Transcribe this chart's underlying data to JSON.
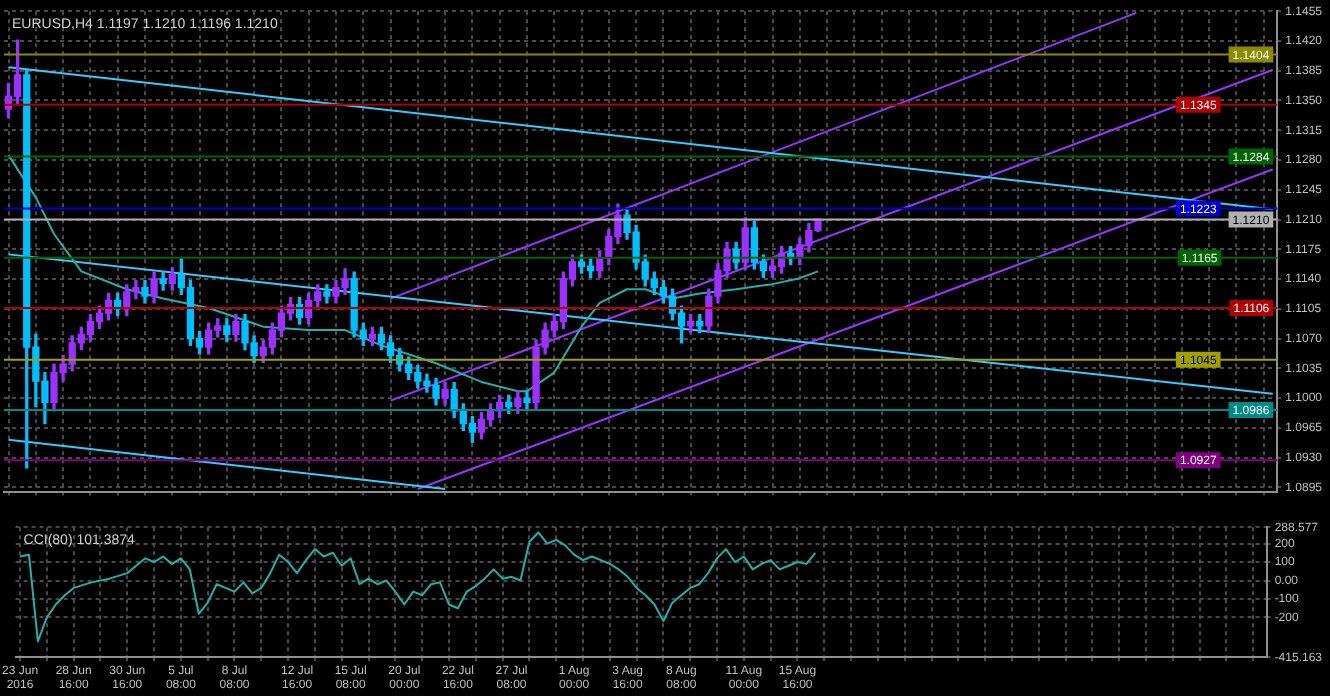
{
  "chart_data": [
    {
      "type": "candlestick",
      "title": "EURUSD,H4 1.1197 1.1210 1.1196 1.1210",
      "categories": [
        null,
        null,
        null,
        null,
        null,
        null,
        null,
        null,
        null,
        null,
        null,
        null,
        null,
        null,
        null,
        null,
        null,
        null,
        null,
        null,
        null,
        null,
        null,
        null,
        null,
        null,
        null,
        null,
        null,
        null,
        null,
        null,
        null,
        null,
        null,
        null,
        null,
        null,
        null,
        null,
        null,
        null,
        null,
        null,
        null,
        null,
        null,
        null,
        null,
        null,
        null,
        null,
        null,
        null,
        null,
        null,
        null,
        null,
        null,
        null,
        null,
        null,
        null,
        null,
        null,
        null,
        null,
        null,
        null,
        null,
        null,
        null,
        null,
        null,
        null,
        null,
        null,
        null,
        null,
        null,
        null,
        null,
        null,
        null,
        null,
        null,
        null,
        null,
        null,
        null,
        null,
        null,
        null,
        null,
        null,
        null,
        null,
        null,
        null,
        null,
        null,
        null,
        null,
        null,
        null,
        null,
        null,
        null,
        null,
        null,
        null,
        null,
        null,
        null,
        null,
        null,
        null,
        null,
        null,
        null,
        null,
        null,
        null,
        null,
        null,
        null,
        null,
        null,
        null,
        null,
        null,
        null,
        null,
        null,
        null,
        null,
        null,
        null,
        null,
        null
      ],
      "ohlc": [
        [
          1.134,
          1.137,
          1.133,
          1.1355
        ],
        [
          1.1355,
          1.1421,
          1.1345,
          1.138
        ],
        [
          1.138,
          1.1385,
          1.0918,
          1.106
        ],
        [
          1.106,
          1.1075,
          1.099,
          1.102
        ],
        [
          1.102,
          1.103,
          1.097,
          1.0995
        ],
        [
          1.0995,
          1.104,
          1.0985,
          1.103
        ],
        [
          1.103,
          1.105,
          1.102,
          1.104
        ],
        [
          1.104,
          1.1073,
          1.1032,
          1.1065
        ],
        [
          1.1065,
          1.1083,
          1.1057,
          1.1075
        ],
        [
          1.1075,
          1.1098,
          1.1067,
          1.109
        ],
        [
          1.109,
          1.1108,
          1.1082,
          1.11
        ],
        [
          1.11,
          1.1123,
          1.1092,
          1.1115
        ],
        [
          1.1115,
          1.1123,
          1.1097,
          1.1105
        ],
        [
          1.1105,
          1.1133,
          1.1097,
          1.1125
        ],
        [
          1.1125,
          1.1138,
          1.1117,
          1.113
        ],
        [
          1.113,
          1.1138,
          1.1112,
          1.112
        ],
        [
          1.112,
          1.1148,
          1.1112,
          1.114
        ],
        [
          1.114,
          1.1148,
          1.1127,
          1.1135
        ],
        [
          1.1135,
          1.1153,
          1.1127,
          1.1145
        ],
        [
          1.1145,
          1.1165,
          1.1122,
          1.113
        ],
        [
          1.113,
          1.1138,
          1.1062,
          1.107
        ],
        [
          1.107,
          1.1078,
          1.1052,
          1.106
        ],
        [
          1.106,
          1.1088,
          1.1052,
          1.108
        ],
        [
          1.108,
          1.1093,
          1.1072,
          1.1085
        ],
        [
          1.1085,
          1.1093,
          1.1067,
          1.1075
        ],
        [
          1.1075,
          1.1098,
          1.1067,
          1.109
        ],
        [
          1.109,
          1.1098,
          1.1057,
          1.1065
        ],
        [
          1.1065,
          1.1073,
          1.1042,
          1.105
        ],
        [
          1.105,
          1.1068,
          1.1042,
          1.106
        ],
        [
          1.106,
          1.1088,
          1.1052,
          1.108
        ],
        [
          1.108,
          1.1108,
          1.1072,
          1.11
        ],
        [
          1.11,
          1.1118,
          1.1092,
          1.111
        ],
        [
          1.111,
          1.1118,
          1.1087,
          1.1095
        ],
        [
          1.1095,
          1.1123,
          1.1087,
          1.1115
        ],
        [
          1.1115,
          1.1133,
          1.1107,
          1.1125
        ],
        [
          1.1125,
          1.1133,
          1.1112,
          1.112
        ],
        [
          1.112,
          1.1138,
          1.1112,
          1.113
        ],
        [
          1.113,
          1.1152,
          1.1122,
          1.114
        ],
        [
          1.114,
          1.1148,
          1.1072,
          1.108
        ],
        [
          1.108,
          1.1088,
          1.1062,
          1.107
        ],
        [
          1.107,
          1.1083,
          1.1062,
          1.1075
        ],
        [
          1.1075,
          1.1083,
          1.1057,
          1.1065
        ],
        [
          1.1065,
          1.1073,
          1.1042,
          1.105
        ],
        [
          1.105,
          1.1058,
          1.1032,
          1.104
        ],
        [
          1.104,
          1.1048,
          1.1022,
          1.103
        ],
        [
          1.103,
          1.1038,
          1.1012,
          1.102
        ],
        [
          1.102,
          1.1028,
          1.1007,
          1.1015
        ],
        [
          1.1015,
          1.1023,
          1.0992,
          1.1
        ],
        [
          1.1,
          1.1018,
          1.0992,
          1.101
        ],
        [
          1.101,
          1.1018,
          1.0977,
          1.0985
        ],
        [
          1.0985,
          1.0993,
          1.0962,
          1.097
        ],
        [
          1.097,
          1.0978,
          1.0948,
          1.096
        ],
        [
          1.096,
          1.0983,
          1.0952,
          1.0975
        ],
        [
          1.0975,
          1.0993,
          1.0967,
          1.0985
        ],
        [
          1.0985,
          1.1003,
          1.0977,
          1.0995
        ],
        [
          1.0995,
          1.1003,
          1.0982,
          1.099
        ],
        [
          1.099,
          1.1008,
          1.0982,
          1.1
        ],
        [
          1.1,
          1.1008,
          1.0987,
          1.0995
        ],
        [
          1.0995,
          1.1068,
          1.0987,
          1.106
        ],
        [
          1.106,
          1.1088,
          1.1052,
          1.108
        ],
        [
          1.108,
          1.1098,
          1.1072,
          1.109
        ],
        [
          1.109,
          1.1148,
          1.1082,
          1.114
        ],
        [
          1.114,
          1.1168,
          1.1132,
          1.116
        ],
        [
          1.116,
          1.1168,
          1.1147,
          1.1155
        ],
        [
          1.1155,
          1.1163,
          1.1142,
          1.115
        ],
        [
          1.115,
          1.1173,
          1.1142,
          1.1165
        ],
        [
          1.1165,
          1.1198,
          1.1157,
          1.119
        ],
        [
          1.119,
          1.1228,
          1.1182,
          1.1215
        ],
        [
          1.1215,
          1.1223,
          1.1187,
          1.1195
        ],
        [
          1.1195,
          1.1203,
          1.1152,
          1.116
        ],
        [
          1.116,
          1.1168,
          1.1132,
          1.114
        ],
        [
          1.114,
          1.1148,
          1.1122,
          1.113
        ],
        [
          1.113,
          1.1138,
          1.1112,
          1.112
        ],
        [
          1.112,
          1.1128,
          1.1092,
          1.11
        ],
        [
          1.11,
          1.1108,
          1.1065,
          1.1085
        ],
        [
          1.1085,
          1.1098,
          1.1077,
          1.109
        ],
        [
          1.109,
          1.1098,
          1.1077,
          1.1085
        ],
        [
          1.1085,
          1.1128,
          1.1077,
          1.112
        ],
        [
          1.112,
          1.1158,
          1.1112,
          1.115
        ],
        [
          1.115,
          1.1183,
          1.1142,
          1.1175
        ],
        [
          1.1175,
          1.1183,
          1.1152,
          1.116
        ],
        [
          1.116,
          1.1212,
          1.1152,
          1.12
        ],
        [
          1.12,
          1.1208,
          1.1152,
          1.116
        ],
        [
          1.116,
          1.1168,
          1.1142,
          1.115
        ],
        [
          1.115,
          1.1163,
          1.1142,
          1.1155
        ],
        [
          1.1155,
          1.1178,
          1.1147,
          1.117
        ],
        [
          1.117,
          1.1178,
          1.1157,
          1.1165
        ],
        [
          1.1165,
          1.1188,
          1.1157,
          1.118
        ],
        [
          1.118,
          1.1205,
          1.1172,
          1.1197
        ],
        [
          1.1197,
          1.121,
          1.1196,
          1.121
        ],
        null,
        null,
        null,
        null,
        null,
        null,
        null,
        null,
        null,
        null,
        null,
        null,
        null,
        null,
        null,
        null,
        null,
        null,
        null,
        null,
        null,
        null,
        null,
        null,
        null,
        null,
        null,
        null,
        null,
        null,
        null,
        null,
        null,
        null,
        null,
        null,
        null,
        null,
        null,
        null,
        null,
        null,
        null,
        null,
        null,
        null,
        null,
        null,
        null,
        null
      ],
      "colors": [
        "#9b30ff",
        "#9b30ff",
        "#00bfff",
        "#00bfff",
        "#00bfff",
        "#9b30ff",
        "#9b30ff",
        "#9b30ff",
        "#9b30ff",
        "#9b30ff",
        "#9b30ff",
        "#9b30ff",
        "#00bfff",
        "#9b30ff",
        "#9b30ff",
        "#00bfff",
        "#9b30ff",
        "#00bfff",
        "#9b30ff",
        "#00bfff",
        "#00bfff",
        "#00bfff",
        "#9b30ff",
        "#9b30ff",
        "#00bfff",
        "#9b30ff",
        "#00bfff",
        "#00bfff",
        "#9b30ff",
        "#9b30ff",
        "#9b30ff",
        "#9b30ff",
        "#00bfff",
        "#9b30ff",
        "#9b30ff",
        "#00bfff",
        "#9b30ff",
        "#9b30ff",
        "#00bfff",
        "#00bfff",
        "#9b30ff",
        "#00bfff",
        "#00bfff",
        "#00bfff",
        "#00bfff",
        "#00bfff",
        "#00bfff",
        "#00bfff",
        "#9b30ff",
        "#00bfff",
        "#00bfff",
        "#00bfff",
        "#9b30ff",
        "#9b30ff",
        "#9b30ff",
        "#00bfff",
        "#9b30ff",
        "#00bfff",
        "#9b30ff",
        "#9b30ff",
        "#9b30ff",
        "#9b30ff",
        "#9b30ff",
        "#00bfff",
        "#00bfff",
        "#9b30ff",
        "#9b30ff",
        "#9b30ff",
        "#00bfff",
        "#00bfff",
        "#00bfff",
        "#00bfff",
        "#00bfff",
        "#00bfff",
        "#00bfff",
        "#9b30ff",
        "#00bfff",
        "#9b30ff",
        "#9b30ff",
        "#9b30ff",
        "#00bfff",
        "#9b30ff",
        "#00bfff",
        "#00bfff",
        "#9b30ff",
        "#9b30ff",
        "#00bfff",
        "#9b30ff",
        "#9b30ff",
        "#9b30ff",
        null,
        null,
        null,
        null,
        null,
        null,
        null,
        null,
        null,
        null,
        null,
        null,
        null,
        null,
        null,
        null,
        null,
        null,
        null,
        null,
        null,
        null,
        null,
        null,
        null,
        null,
        null,
        null,
        null,
        null,
        null,
        null,
        null,
        null,
        null,
        null,
        null,
        null,
        null,
        null,
        null,
        null,
        null,
        null,
        null,
        null,
        null,
        null,
        null,
        null
      ],
      "series": [
        {
          "type": "line",
          "color": "#20b2aa",
          "values": [
            1.1286,
            1.1269,
            null,
            1.1236,
            null,
            1.1193,
            null,
            null,
            1.1149,
            null,
            null,
            null,
            null,
            1.1128,
            null,
            null,
            null,
            1.1117,
            null,
            null,
            null,
            null,
            1.1106,
            null,
            null,
            null,
            null,
            null,
            1.1084,
            null,
            null,
            null,
            null,
            1.108,
            null,
            null,
            null,
            1.108,
            null,
            null,
            null,
            1.1062,
            null,
            null,
            null,
            null,
            null,
            1.1041,
            null,
            null,
            null,
            null,
            1.1019,
            null,
            null,
            null,
            1.1008,
            1.1008,
            null,
            null,
            1.103,
            null,
            null,
            1.1084,
            null,
            1.1112,
            null,
            null,
            1.1128,
            null,
            1.1128,
            null,
            null,
            1.1117,
            null,
            null,
            1.1123,
            null,
            null,
            null,
            1.1128,
            null,
            null,
            null,
            1.1134,
            null,
            null,
            1.1141,
            null,
            1.1149,
            null,
            null,
            null,
            null,
            null,
            null,
            null,
            null,
            null,
            null,
            null,
            null,
            null,
            null,
            null,
            null,
            null,
            null,
            null,
            null,
            null,
            null,
            null,
            null,
            null,
            null,
            null,
            null,
            null,
            null,
            null,
            null,
            null,
            null,
            null,
            null,
            null,
            null,
            null,
            null,
            null,
            null,
            null,
            null,
            null,
            null,
            null,
            null,
            null,
            null
          ]
        },
        {
          "type": "line",
          "color": "#33ccff",
          "values": [
            1.1389,
            null,
            null,
            null,
            null,
            null,
            null,
            null,
            null,
            null,
            null,
            null,
            null,
            null,
            null,
            null,
            null,
            null,
            null,
            null,
            null,
            null,
            null,
            null,
            null,
            null,
            null,
            null,
            null,
            null,
            null,
            null,
            null,
            null,
            null,
            null,
            null,
            null,
            null,
            null,
            null,
            null,
            null,
            null,
            null,
            null,
            null,
            null,
            null,
            null,
            null,
            null,
            null,
            null,
            null,
            null,
            null,
            null,
            null,
            null,
            null,
            null,
            null,
            null,
            null,
            null,
            null,
            null,
            null,
            null,
            null,
            null,
            null,
            null,
            null,
            null,
            null,
            null,
            null,
            null,
            null,
            null,
            null,
            null,
            null,
            null,
            null,
            null,
            null,
            null,
            null,
            null,
            null,
            null,
            null,
            null,
            null,
            null,
            null,
            null,
            null,
            null,
            null,
            null,
            null,
            null,
            null,
            null,
            null,
            null,
            null,
            null,
            null,
            null,
            null,
            null,
            null,
            null,
            null,
            null,
            null,
            null,
            null,
            null,
            null,
            null,
            null,
            null,
            null,
            null,
            null,
            null,
            null,
            null,
            null,
            null,
            null,
            null,
            null,
            1.1222
          ]
        },
        {
          "type": "line",
          "color": "#33ccff",
          "values": [
            1.1169,
            null,
            null,
            null,
            null,
            null,
            null,
            null,
            null,
            null,
            null,
            null,
            null,
            null,
            null,
            null,
            null,
            null,
            null,
            null,
            null,
            null,
            null,
            null,
            null,
            null,
            null,
            null,
            null,
            null,
            null,
            null,
            null,
            null,
            null,
            null,
            null,
            null,
            null,
            null,
            null,
            null,
            null,
            null,
            null,
            null,
            null,
            null,
            null,
            null,
            null,
            null,
            null,
            null,
            null,
            null,
            null,
            null,
            null,
            null,
            null,
            null,
            null,
            null,
            null,
            null,
            null,
            null,
            null,
            null,
            null,
            null,
            null,
            null,
            null,
            null,
            null,
            null,
            null,
            null,
            null,
            null,
            null,
            null,
            null,
            null,
            null,
            null,
            null,
            null,
            null,
            null,
            null,
            null,
            null,
            null,
            null,
            null,
            null,
            null,
            null,
            null,
            null,
            null,
            null,
            null,
            null,
            null,
            null,
            null,
            null,
            null,
            null,
            null,
            null,
            null,
            null,
            null,
            null,
            null,
            null,
            null,
            null,
            null,
            null,
            null,
            null,
            null,
            null,
            null,
            null,
            null,
            null,
            null,
            null,
            null,
            null,
            null,
            null,
            1.1005
          ]
        },
        {
          "type": "line",
          "color": "#33ccff",
          "values": [
            1.0951,
            null,
            null,
            null,
            null,
            null,
            null,
            null,
            null,
            null,
            null,
            null,
            null,
            null,
            null,
            null,
            null,
            null,
            null,
            null,
            null,
            null,
            null,
            null,
            null,
            null,
            null,
            null,
            null,
            null,
            null,
            null,
            null,
            null,
            null,
            null,
            null,
            null,
            null,
            null,
            null,
            null,
            null,
            null,
            null,
            null,
            null,
            null,
            1.0893,
            null,
            null,
            null,
            null,
            null,
            null,
            null,
            null,
            null,
            null,
            null,
            null,
            null,
            null,
            null,
            null,
            null,
            null,
            null,
            null,
            null,
            null,
            null,
            null,
            null,
            null,
            null,
            null,
            null,
            null,
            null,
            null,
            null,
            null,
            null,
            null,
            null,
            null,
            null,
            null,
            null,
            null,
            null,
            null,
            null,
            null,
            null,
            null,
            null,
            null,
            null,
            null,
            null,
            null,
            null,
            null,
            null,
            null,
            null,
            null,
            null,
            null,
            null,
            null,
            null,
            null,
            null,
            null,
            null,
            null,
            null,
            null,
            null,
            null,
            null,
            null,
            null,
            null,
            null,
            null,
            null,
            null,
            null,
            null,
            null,
            null,
            null,
            null,
            null,
            null,
            null
          ]
        },
        {
          "type": "line",
          "color": "#9933ff",
          "values": [
            null,
            null,
            null,
            null,
            null,
            null,
            null,
            null,
            null,
            null,
            null,
            null,
            null,
            null,
            null,
            null,
            null,
            null,
            null,
            null,
            null,
            null,
            null,
            null,
            null,
            null,
            null,
            null,
            null,
            null,
            null,
            null,
            null,
            null,
            null,
            null,
            null,
            null,
            null,
            null,
            null,
            null,
            1.1117,
            null,
            null,
            null,
            null,
            null,
            null,
            null,
            null,
            null,
            null,
            null,
            null,
            null,
            null,
            null,
            null,
            null,
            null,
            null,
            null,
            null,
            null,
            null,
            null,
            null,
            null,
            null,
            null,
            null,
            null,
            null,
            null,
            null,
            null,
            null,
            null,
            null,
            null,
            null,
            null,
            null,
            null,
            null,
            null,
            null,
            null,
            null,
            null,
            null,
            null,
            null,
            null,
            null,
            null,
            null,
            null,
            null,
            null,
            null,
            null,
            null,
            null,
            null,
            null,
            null,
            null,
            null,
            null,
            null,
            null,
            null,
            null,
            null,
            null,
            null,
            null,
            null,
            null,
            null,
            null,
            null,
            1.1453,
            null,
            null,
            null,
            null,
            null,
            null,
            null,
            null,
            null,
            null,
            null,
            null,
            null,
            null,
            null
          ]
        },
        {
          "type": "line",
          "color": "#9933ff",
          "values": [
            null,
            null,
            null,
            null,
            null,
            null,
            null,
            null,
            null,
            null,
            null,
            null,
            null,
            null,
            null,
            null,
            null,
            null,
            null,
            null,
            null,
            null,
            null,
            null,
            null,
            null,
            null,
            null,
            null,
            null,
            null,
            null,
            null,
            null,
            null,
            null,
            null,
            null,
            null,
            null,
            null,
            null,
            1.0997,
            null,
            null,
            null,
            null,
            null,
            null,
            null,
            null,
            null,
            null,
            null,
            null,
            null,
            null,
            null,
            null,
            null,
            null,
            null,
            null,
            null,
            null,
            null,
            null,
            null,
            null,
            null,
            null,
            null,
            null,
            null,
            null,
            null,
            null,
            null,
            null,
            null,
            null,
            null,
            null,
            null,
            null,
            null,
            null,
            null,
            null,
            null,
            null,
            null,
            null,
            null,
            null,
            null,
            null,
            null,
            null,
            null,
            null,
            null,
            null,
            null,
            null,
            null,
            null,
            null,
            null,
            null,
            null,
            null,
            null,
            null,
            null,
            null,
            null,
            null,
            null,
            null,
            null,
            null,
            null,
            null,
            null,
            null,
            null,
            null,
            null,
            null,
            null,
            null,
            null,
            null,
            null,
            null,
            null,
            null,
            null,
            1.1386
          ]
        },
        {
          "type": "line",
          "color": "#9933ff",
          "values": [
            null,
            null,
            null,
            null,
            null,
            null,
            null,
            null,
            null,
            null,
            null,
            null,
            null,
            null,
            null,
            null,
            null,
            null,
            null,
            null,
            null,
            null,
            null,
            null,
            null,
            null,
            null,
            null,
            null,
            null,
            null,
            null,
            null,
            null,
            null,
            null,
            null,
            null,
            null,
            null,
            null,
            null,
            null,
            null,
            null,
            1.0893,
            null,
            null,
            null,
            null,
            null,
            null,
            null,
            null,
            null,
            null,
            null,
            null,
            null,
            null,
            null,
            null,
            null,
            null,
            null,
            null,
            null,
            null,
            null,
            null,
            null,
            null,
            null,
            null,
            null,
            null,
            null,
            null,
            null,
            null,
            null,
            null,
            null,
            null,
            null,
            null,
            null,
            null,
            null,
            null,
            null,
            null,
            null,
            null,
            null,
            null,
            null,
            null,
            null,
            null,
            null,
            null,
            null,
            null,
            null,
            null,
            null,
            null,
            null,
            null,
            null,
            null,
            null,
            null,
            null,
            null,
            null,
            null,
            null,
            null,
            null,
            null,
            null,
            null,
            null,
            null,
            null,
            null,
            null,
            null,
            null,
            null,
            null,
            null,
            null,
            null,
            null,
            null,
            null,
            1.1269
          ]
        }
      ],
      "ylim": [
        1.089,
        1.1455
      ],
      "yticks": [
        1.0895,
        {
          "value": 1.093,
          "label": "1.0930"
        },
        1.0965,
        {
          "value": 1.1,
          "label": "1.1000"
        },
        1.1035,
        {
          "value": 1.107,
          "label": "1.1070"
        },
        1.1105,
        {
          "value": 1.114,
          "label": "1.1140"
        },
        1.1175,
        {
          "value": 1.121,
          "label": "1.1210"
        },
        1.1245,
        {
          "value": 1.128,
          "label": "1.1280"
        },
        1.1315,
        {
          "value": 1.135,
          "label": "1.1350"
        },
        1.1385,
        {
          "value": 1.142,
          "label": "1.1420"
        },
        1.1455
      ],
      "ref_lines": [
        {
          "axis": "y",
          "value": 1.1404,
          "label": "1.1404",
          "color": "#8b8b00"
        },
        {
          "axis": "y",
          "value": 1.1345,
          "label": "1.1345",
          "color": "#b00000"
        },
        {
          "axis": "y",
          "value": 1.1284,
          "label": "1.1284",
          "color": "#006400"
        },
        {
          "axis": "y",
          "value": 1.1223,
          "label": "1.1223",
          "color": "#0000cd"
        },
        {
          "axis": "y",
          "value": 1.121,
          "label": "1.1210",
          "color": "#b0b0b0"
        },
        {
          "axis": "y",
          "value": 1.1165,
          "label": "1.1165",
          "color": "#006400"
        },
        {
          "axis": "y",
          "value": 1.1106,
          "label": "1.1106",
          "color": "#b00000"
        },
        {
          "axis": "y",
          "value": 1.1045,
          "label": "1.1045",
          "color": "#a0a000"
        },
        {
          "axis": "y",
          "value": 1.0986,
          "label": "1.0986",
          "color": "#008b8b"
        },
        {
          "axis": "y",
          "value": 1.0927,
          "label": "1.0927",
          "color": "#800080"
        }
      ],
      "grid": true
    },
    {
      "type": "line",
      "title": "CCI(80) 101.3874",
      "color": "#20b2aa",
      "categories": [
        "23 Jun 2016",
        null,
        null,
        null,
        null,
        null,
        "28 Jun 16:00",
        null,
        null,
        null,
        null,
        null,
        "30 Jun 16:00",
        null,
        null,
        null,
        null,
        null,
        "5 Jul 08:00",
        null,
        null,
        null,
        null,
        null,
        "8 Jul 08:00",
        null,
        null,
        null,
        null,
        null,
        null,
        "12 Jul 16:00",
        null,
        null,
        null,
        null,
        null,
        "15 Jul 08:00",
        null,
        null,
        null,
        null,
        null,
        "20 Jul 00:00",
        null,
        null,
        null,
        null,
        null,
        "22 Jul 16:00",
        null,
        null,
        null,
        null,
        null,
        "27 Jul 08:00",
        null,
        null,
        null,
        null,
        null,
        null,
        "1 Aug 00:00",
        null,
        null,
        null,
        null,
        null,
        "3 Aug 16:00",
        null,
        null,
        null,
        null,
        null,
        "8 Aug 08:00",
        null,
        null,
        null,
        null,
        null,
        null,
        "11 Aug 00:00",
        null,
        null,
        null,
        null,
        null,
        "15 Aug 16:00",
        null,
        null,
        null,
        null,
        null,
        null,
        null,
        null,
        null,
        null,
        null,
        null,
        null,
        null,
        null,
        null,
        null,
        null,
        null,
        null,
        null,
        null,
        null,
        null,
        null,
        null,
        null,
        null,
        null,
        null,
        null,
        null,
        null,
        null,
        null,
        null,
        null,
        null,
        null,
        null,
        null,
        null,
        null,
        null,
        null,
        null,
        null,
        null,
        null,
        null,
        null,
        null
      ],
      "values": [
        130,
        140,
        -330,
        -200,
        -130,
        -80,
        -40,
        null,
        -10,
        null,
        10,
        null,
        40,
        80,
        120,
        100,
        130,
        90,
        120,
        60,
        -180,
        -120,
        -20,
        -40,
        -60,
        -10,
        -70,
        -40,
        40,
        140,
        100,
        40,
        110,
        170,
        130,
        150,
        80,
        120,
        -20,
        10,
        -20,
        0,
        -60,
        -130,
        -60,
        -80,
        -20,
        -10,
        -130,
        -150,
        -60,
        -30,
        10,
        60,
        10,
        20,
        0,
        210,
        260,
        200,
        220,
        190,
        140,
        110,
        130,
        110,
        90,
        60,
        20,
        -40,
        -80,
        -130,
        -220,
        -120,
        -80,
        -40,
        -20,
        40,
        120,
        170,
        100,
        130,
        60,
        90,
        110,
        60,
        80,
        100,
        90,
        150,
        null,
        null,
        null,
        null,
        null,
        null,
        null,
        null,
        null,
        null,
        null,
        null,
        null,
        null,
        null,
        null,
        null,
        null,
        null,
        null,
        null,
        null,
        null,
        null,
        null,
        null,
        null,
        null,
        null,
        null,
        null,
        null,
        null,
        null,
        null,
        null,
        null,
        null,
        null,
        null,
        null,
        null,
        null,
        null,
        null,
        null,
        null,
        null,
        null,
        null
      ],
      "ylim": [
        -415.163,
        288.577
      ],
      "yticks": [
        -415.163,
        -200,
        -100,
        {
          "value": 0,
          "label": "0.00"
        },
        100,
        200,
        288.577
      ],
      "grid": true
    }
  ]
}
